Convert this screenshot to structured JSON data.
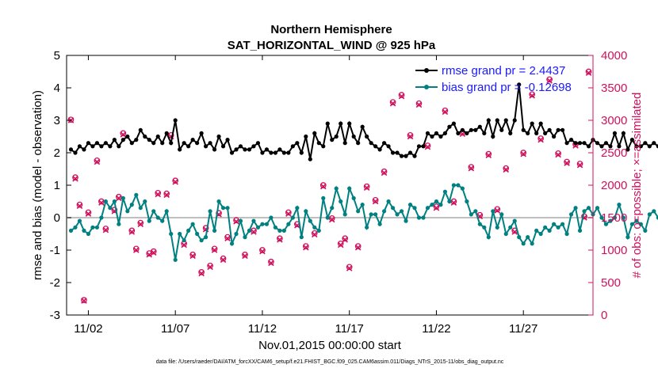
{
  "chart_data": {
    "type": "line",
    "title": "Northern Hemisphere",
    "subtitle": "SAT_HORIZONTAL_WIND @ 925 hPa",
    "xlabel": "Nov.01,2015 00:00:00 start",
    "ylabel": "rmse and bias (model - observation)",
    "ylabel_right": "# of obs: o=possible; ×=assimilated",
    "footnote": "data file: /Users/raeder/DAI/ATM_forcXX/CAM6_setup/f.e21.FHIST_BGC.f09_025.CAM6assim.011/Diags_NTrS_2015-11/obs_diag_output.nc",
    "xlim": [
      0.75,
      31.0
    ],
    "ylim": [
      -3,
      5
    ],
    "ylim_right": [
      0,
      4000
    ],
    "xticks": [
      2,
      7,
      12,
      17,
      22,
      27
    ],
    "xtick_labels": [
      "11/02",
      "11/07",
      "11/12",
      "11/17",
      "11/22",
      "11/27"
    ],
    "yticks": [
      -3,
      -2,
      -1,
      0,
      1,
      2,
      3,
      4,
      5
    ],
    "yticks_right": [
      0,
      500,
      1000,
      1500,
      2000,
      2500,
      3000,
      3500,
      4000
    ],
    "zero_line": 0,
    "x_step_per_point": 0.25,
    "legend_location": "top-right",
    "colors": {
      "rmse": "#000000",
      "bias": "#008080",
      "obs": "#d0105c",
      "legend_text": "#1a1aff",
      "zero_line": "#bfbfbf"
    },
    "series": [
      {
        "name": "rmse",
        "legend": "rmse grand pr = 2.4437",
        "values": [
          2.1,
          2.0,
          2.2,
          2.1,
          2.3,
          2.2,
          2.3,
          2.2,
          2.3,
          2.2,
          2.4,
          2.2,
          2.4,
          2.5,
          2.3,
          2.4,
          2.7,
          2.5,
          2.4,
          2.3,
          2.5,
          2.3,
          2.6,
          2.3,
          3.0,
          2.1,
          2.3,
          2.2,
          2.4,
          2.3,
          2.6,
          2.2,
          2.3,
          2.1,
          2.5,
          2.2,
          2.4,
          2.0,
          2.1,
          2.2,
          2.1,
          2.1,
          2.2,
          2.3,
          2.0,
          2.1,
          2.0,
          2.0,
          2.1,
          2.0,
          2.0,
          2.2,
          2.3,
          2.0,
          2.5,
          1.8,
          2.6,
          2.3,
          2.2,
          2.9,
          2.4,
          2.5,
          2.9,
          2.3,
          2.9,
          2.5,
          2.3,
          2.8,
          2.5,
          2.3,
          2.2,
          2.1,
          2.3,
          2.2,
          2.0,
          2.0,
          1.9,
          1.9,
          2.0,
          1.9,
          2.2,
          2.2,
          2.6,
          2.5,
          2.6,
          2.5,
          2.6,
          2.8,
          2.9,
          2.6,
          2.7,
          2.6,
          2.7,
          2.7,
          2.8,
          2.6,
          3.0,
          2.5,
          3.0,
          2.7,
          3.0,
          2.6,
          3.0,
          4.1,
          2.7,
          2.6,
          2.9,
          2.6,
          2.9,
          2.6,
          2.7,
          2.5,
          2.7,
          2.7,
          2.3,
          2.4,
          2.3,
          2.3,
          2.3,
          2.2,
          2.4,
          2.3,
          2.2,
          2.3,
          2.2,
          2.6,
          2.2,
          2.6,
          2.1,
          2.4,
          2.2,
          2.2,
          2.3,
          2.2,
          2.3,
          2.2,
          2.9,
          2.6,
          2.5,
          2.6,
          2.4,
          2.2,
          2.4,
          2.6,
          2.4,
          2.5,
          2.7,
          2.5,
          2.3,
          2.5,
          2.2,
          2.4,
          2.3,
          2.4,
          2.3,
          2.4,
          2.7,
          2.5,
          2.8,
          2.8,
          2.5,
          2.4,
          2.8,
          2.9,
          2.9,
          2.7,
          2.4,
          2.4,
          2.5,
          2.3,
          2.3,
          2.3,
          2.7,
          2.4,
          2.8,
          2.6,
          2.3,
          2.4,
          2.3,
          2.3,
          2.2,
          2.3,
          2.4,
          2.4,
          2.6,
          2.8,
          2.5,
          3.0,
          2.9,
          2.5,
          3.1,
          2.8,
          2.5,
          2.7,
          2.4,
          2.6,
          2.3,
          2.5,
          2.7,
          2.6,
          2.3,
          2.6,
          2.2,
          2.6,
          2.3,
          2.5,
          2.6,
          2.2,
          2.4,
          2.1,
          2.3,
          2.5
        ]
      },
      {
        "name": "bias",
        "legend": "bias grand pr = -0.12698",
        "values": [
          -0.4,
          -0.3,
          -0.1,
          -0.4,
          -0.5,
          -0.3,
          -0.3,
          0.0,
          0.5,
          0.3,
          0.5,
          -0.2,
          0.6,
          0.2,
          0.4,
          0.7,
          0.3,
          0.5,
          -0.1,
          0.2,
          0.0,
          -0.1,
          0.2,
          -0.5,
          -1.3,
          -0.5,
          -0.7,
          -0.4,
          -0.2,
          -0.5,
          -0.7,
          -0.6,
          0.2,
          -0.4,
          0.5,
          0.3,
          0.3,
          -0.8,
          -0.5,
          -0.1,
          -0.6,
          -0.4,
          -0.1,
          -0.3,
          -0.2,
          -0.2,
          0.0,
          -0.3,
          -0.4,
          -0.4,
          -0.2,
          0.0,
          0.3,
          -0.6,
          0.2,
          -0.1,
          -0.3,
          -0.4,
          0.6,
          0.0,
          0.3,
          0.9,
          0.5,
          0.1,
          0.9,
          0.6,
          0.2,
          0.4,
          -0.3,
          0.1,
          0.1,
          -0.2,
          0.2,
          0.5,
          0.3,
          0.1,
          0.2,
          -0.1,
          0.4,
          0.3,
          0.0,
          0.0,
          0.3,
          0.4,
          0.5,
          0.4,
          0.8,
          0.5,
          1.0,
          1.0,
          0.9,
          0.5,
          0.1,
          0.2,
          -0.2,
          -0.3,
          -0.6,
          0.2,
          -0.3,
          0.1,
          -0.5,
          -0.3,
          -0.1,
          -0.6,
          -0.8,
          -0.6,
          -0.8,
          -0.4,
          -0.5,
          -0.3,
          -0.4,
          -0.2,
          -0.3,
          -0.2,
          -0.5,
          0.1,
          0.3,
          -0.4,
          0.2,
          0.3,
          0.1,
          0.3,
          0.0,
          -0.2,
          -0.1,
          0.0,
          0.4,
          0.0,
          -0.6,
          -0.2,
          -0.1,
          -0.2,
          -0.4,
          0.1,
          0.2,
          0.0,
          0.2,
          0.3,
          -0.3,
          -0.6,
          -0.4,
          -0.1,
          -0.3,
          -0.7,
          -0.6,
          -0.3,
          -0.4,
          0.0,
          -0.5,
          -0.4,
          -0.7,
          -0.9,
          -0.6,
          -0.5,
          -0.4,
          -0.4,
          -0.2,
          -0.5,
          -0.6,
          -0.8,
          -0.9,
          -0.7,
          -0.4,
          -0.5,
          -0.4,
          -0.4,
          -0.5,
          -0.3,
          0.0,
          -0.4,
          -0.6,
          -0.1,
          -0.4,
          0.1,
          -0.3,
          -0.5,
          -0.3,
          0.2,
          -0.3,
          0.1,
          0.2,
          0.0,
          -0.2,
          -0.7,
          -0.5,
          -0.4,
          -0.6,
          -0.5,
          -0.3,
          -0.5,
          -0.8,
          -0.6,
          -0.9,
          -1.0,
          -0.8,
          -1.0,
          -0.9,
          -0.8,
          -0.9,
          -0.9,
          -0.8,
          -1.1,
          -1.2,
          -1.1,
          -1.3,
          -1.0,
          -0.9,
          -0.9,
          -0.8,
          -1.1,
          -1.3
        ]
      },
      {
        "name": "obs possible",
        "axis": "right",
        "marker": "circle",
        "x": [
          1.0,
          1.25,
          1.5,
          1.75,
          2.0,
          2.5,
          2.75,
          3.0,
          3.5,
          3.75,
          4.0,
          4.5,
          4.75,
          5.0,
          5.5,
          5.75,
          6.0,
          6.5,
          6.75,
          7.0,
          7.5,
          8.0,
          8.5,
          8.75,
          9.0,
          9.25,
          9.5,
          9.75,
          10.0,
          10.5,
          11.0,
          11.5,
          12.0,
          12.5,
          13.0,
          13.5,
          14.0,
          14.5,
          15.0,
          15.5,
          16.0,
          16.5,
          16.75,
          17.0,
          17.5,
          18.0,
          18.5,
          19.0,
          19.5,
          20.0,
          20.5,
          21.0,
          21.5,
          22.0,
          22.5,
          23.0,
          23.5,
          24.0,
          24.5,
          25.0,
          25.5,
          26.0,
          26.5,
          27.0,
          27.5,
          28.0,
          28.5,
          29.0,
          29.5,
          30.0,
          30.25,
          30.5,
          30.75
        ],
        "values": [
          3010,
          2120,
          1700,
          230,
          1580,
          2380,
          1750,
          1330,
          1620,
          1820,
          2800,
          1300,
          1020,
          1420,
          950,
          980,
          1880,
          1870,
          2770,
          2070,
          1100,
          930,
          660,
          1340,
          760,
          1020,
          1570,
          870,
          1200,
          1460,
          930,
          1300,
          1000,
          820,
          1180,
          1580,
          1400,
          1060,
          1260,
          2000,
          1490,
          1100,
          1180,
          740,
          1060,
          1980,
          1770,
          2210,
          3280,
          3390,
          2770,
          3260,
          2610,
          1670,
          3150,
          1750,
          2810,
          2280,
          1540,
          2480,
          1630,
          2260,
          1300,
          2500,
          3400,
          2720,
          3630,
          2490,
          2360,
          2630,
          2330,
          1520,
          3750
        ]
      },
      {
        "name": "obs assimilated",
        "axis": "right",
        "marker": "x",
        "x": [
          1.0,
          1.25,
          1.5,
          1.75,
          2.0,
          2.5,
          2.75,
          3.0,
          3.5,
          3.75,
          4.0,
          4.5,
          4.75,
          5.0,
          5.5,
          5.75,
          6.0,
          6.5,
          6.75,
          7.0,
          7.5,
          8.0,
          8.5,
          8.75,
          9.0,
          9.25,
          9.5,
          9.75,
          10.0,
          10.5,
          11.0,
          11.5,
          12.0,
          12.5,
          13.0,
          13.5,
          14.0,
          14.5,
          15.0,
          15.5,
          16.0,
          16.5,
          16.75,
          17.0,
          17.5,
          18.0,
          18.5,
          19.0,
          19.5,
          20.0,
          20.5,
          21.0,
          21.5,
          22.0,
          22.5,
          23.0,
          23.5,
          24.0,
          24.5,
          25.0,
          25.5,
          26.0,
          26.5,
          27.0,
          27.5,
          28.0,
          28.5,
          29.0,
          29.5,
          30.0,
          30.25,
          30.5,
          30.75
        ],
        "values": [
          3000,
          2100,
          1680,
          220,
          1560,
          2360,
          1730,
          1310,
          1600,
          1800,
          2780,
          1280,
          1000,
          1400,
          930,
          960,
          1860,
          1850,
          2750,
          2050,
          1080,
          910,
          640,
          1320,
          740,
          1000,
          1550,
          850,
          1180,
          1440,
          910,
          1280,
          980,
          800,
          1160,
          1560,
          1380,
          1040,
          1240,
          1980,
          1470,
          1080,
          1160,
          720,
          1040,
          1960,
          1750,
          2190,
          3260,
          3370,
          2750,
          3240,
          2590,
          1650,
          3130,
          1730,
          2790,
          2260,
          1520,
          2460,
          1610,
          2240,
          1280,
          2480,
          3380,
          2700,
          3610,
          2470,
          2340,
          2610,
          2310,
          1500,
          3730
        ]
      }
    ]
  }
}
